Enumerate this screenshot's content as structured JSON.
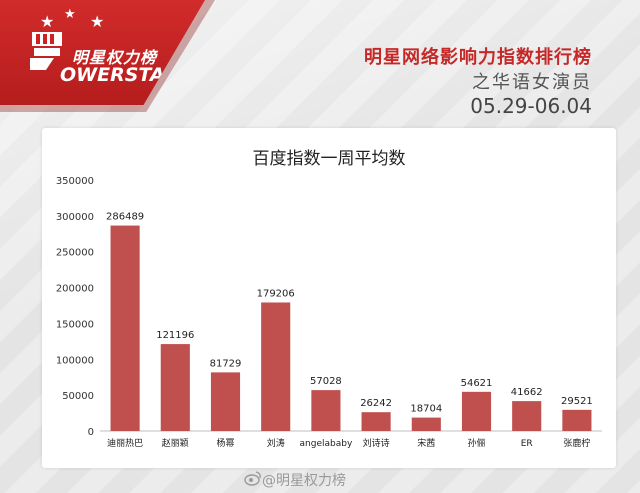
{
  "header": {
    "logo_cn": "明星权力榜",
    "logo_en": "OWERSTAR",
    "title": "明星网络影响力指数排行榜",
    "subtitle": "之华语女演员",
    "date_range": "05.29-06.04"
  },
  "watermark": "@明星权力榜",
  "colors": {
    "bar": "#c0504d",
    "accent": "#c62828"
  },
  "chart_data": {
    "type": "bar",
    "title": "百度指数一周平均数",
    "categories": [
      "迪丽热巴",
      "赵丽颖",
      "杨幂",
      "刘涛",
      "angelababy",
      "刘诗诗",
      "宋茜",
      "孙俪",
      "ER",
      "张鹿柠"
    ],
    "values": [
      286489,
      121196,
      81729,
      179206,
      57028,
      26242,
      18704,
      54621,
      41662,
      29521
    ],
    "ylim": [
      0,
      350000
    ],
    "yticks": [
      0,
      50000,
      100000,
      150000,
      200000,
      250000,
      300000,
      350000
    ],
    "xlabel": "",
    "ylabel": ""
  }
}
